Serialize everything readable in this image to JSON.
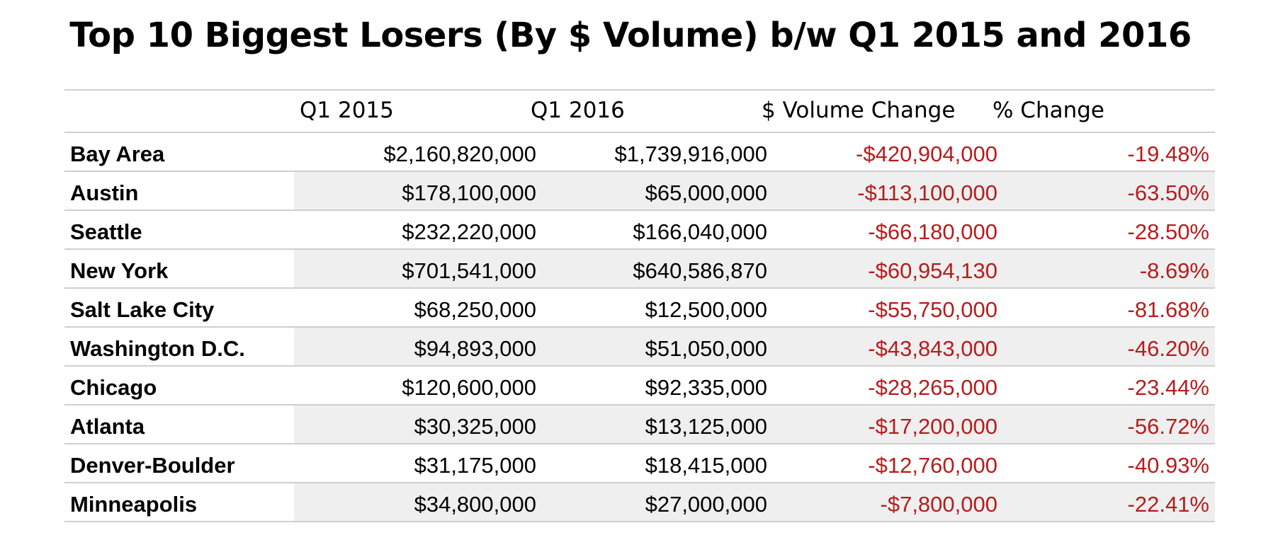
{
  "title": "Top 10 Biggest Losers (By $ Volume) b/w Q1 2015 and 2016",
  "negative_color": "#b71c1c",
  "chart_data": {
    "type": "table",
    "title": "Top 10 Biggest Losers (By $ Volume) b/w Q1 2015 and 2016",
    "columns": [
      "",
      "Q1 2015",
      "Q1 2016",
      "$ Volume Change",
      "% Change"
    ],
    "rows": [
      [
        "Bay Area",
        "$2,160,820,000",
        "$1,739,916,000",
        "-$420,904,000",
        "-19.48%"
      ],
      [
        "Austin",
        "$178,100,000",
        "$65,000,000",
        "-$113,100,000",
        "-63.50%"
      ],
      [
        "Seattle",
        "$232,220,000",
        "$166,040,000",
        "-$66,180,000",
        "-28.50%"
      ],
      [
        "New York",
        "$701,541,000",
        "$640,586,870",
        "-$60,954,130",
        "-8.69%"
      ],
      [
        "Salt Lake City",
        "$68,250,000",
        "$12,500,000",
        "-$55,750,000",
        "-81.68%"
      ],
      [
        "Washington D.C.",
        "$94,893,000",
        "$51,050,000",
        "-$43,843,000",
        "-46.20%"
      ],
      [
        "Chicago",
        "$120,600,000",
        "$92,335,000",
        "-$28,265,000",
        "-23.44%"
      ],
      [
        "Atlanta",
        "$30,325,000",
        "$13,125,000",
        "-$17,200,000",
        "-56.72%"
      ],
      [
        "Denver-Boulder",
        "$31,175,000",
        "$18,415,000",
        "-$12,760,000",
        "-40.93%"
      ],
      [
        "Minneapolis",
        "$34,800,000",
        "$27,000,000",
        "-$7,800,000",
        "-22.41%"
      ]
    ]
  }
}
